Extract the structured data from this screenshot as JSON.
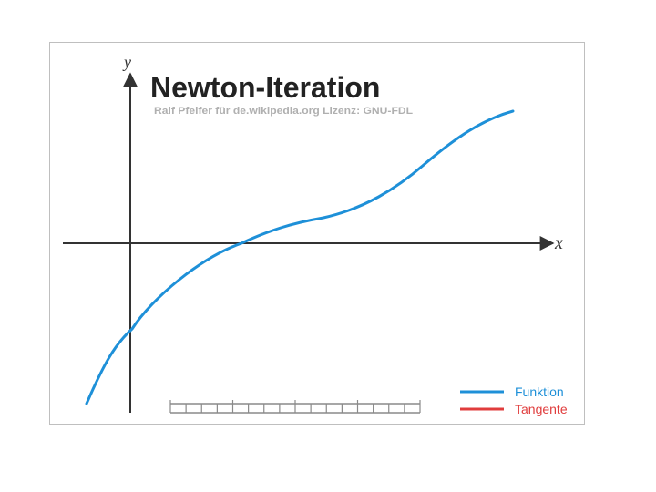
{
  "title": "Newton-Iteration",
  "credit": "Ralf Pfeifer für de.wikipedia.org   Lizenz: GNU-FDL",
  "axes": {
    "x_label": "x",
    "y_label": "y"
  },
  "legend": {
    "funktion": {
      "label": "Funktion",
      "color": "#1e90d8"
    },
    "tangente": {
      "label": "Tangente",
      "color": "#e03c3c"
    }
  },
  "colors": {
    "axis": "#333333",
    "title": "#222222",
    "credit": "#b0b0b0"
  },
  "ruler": {
    "segments": 16,
    "major_every": 4
  }
}
